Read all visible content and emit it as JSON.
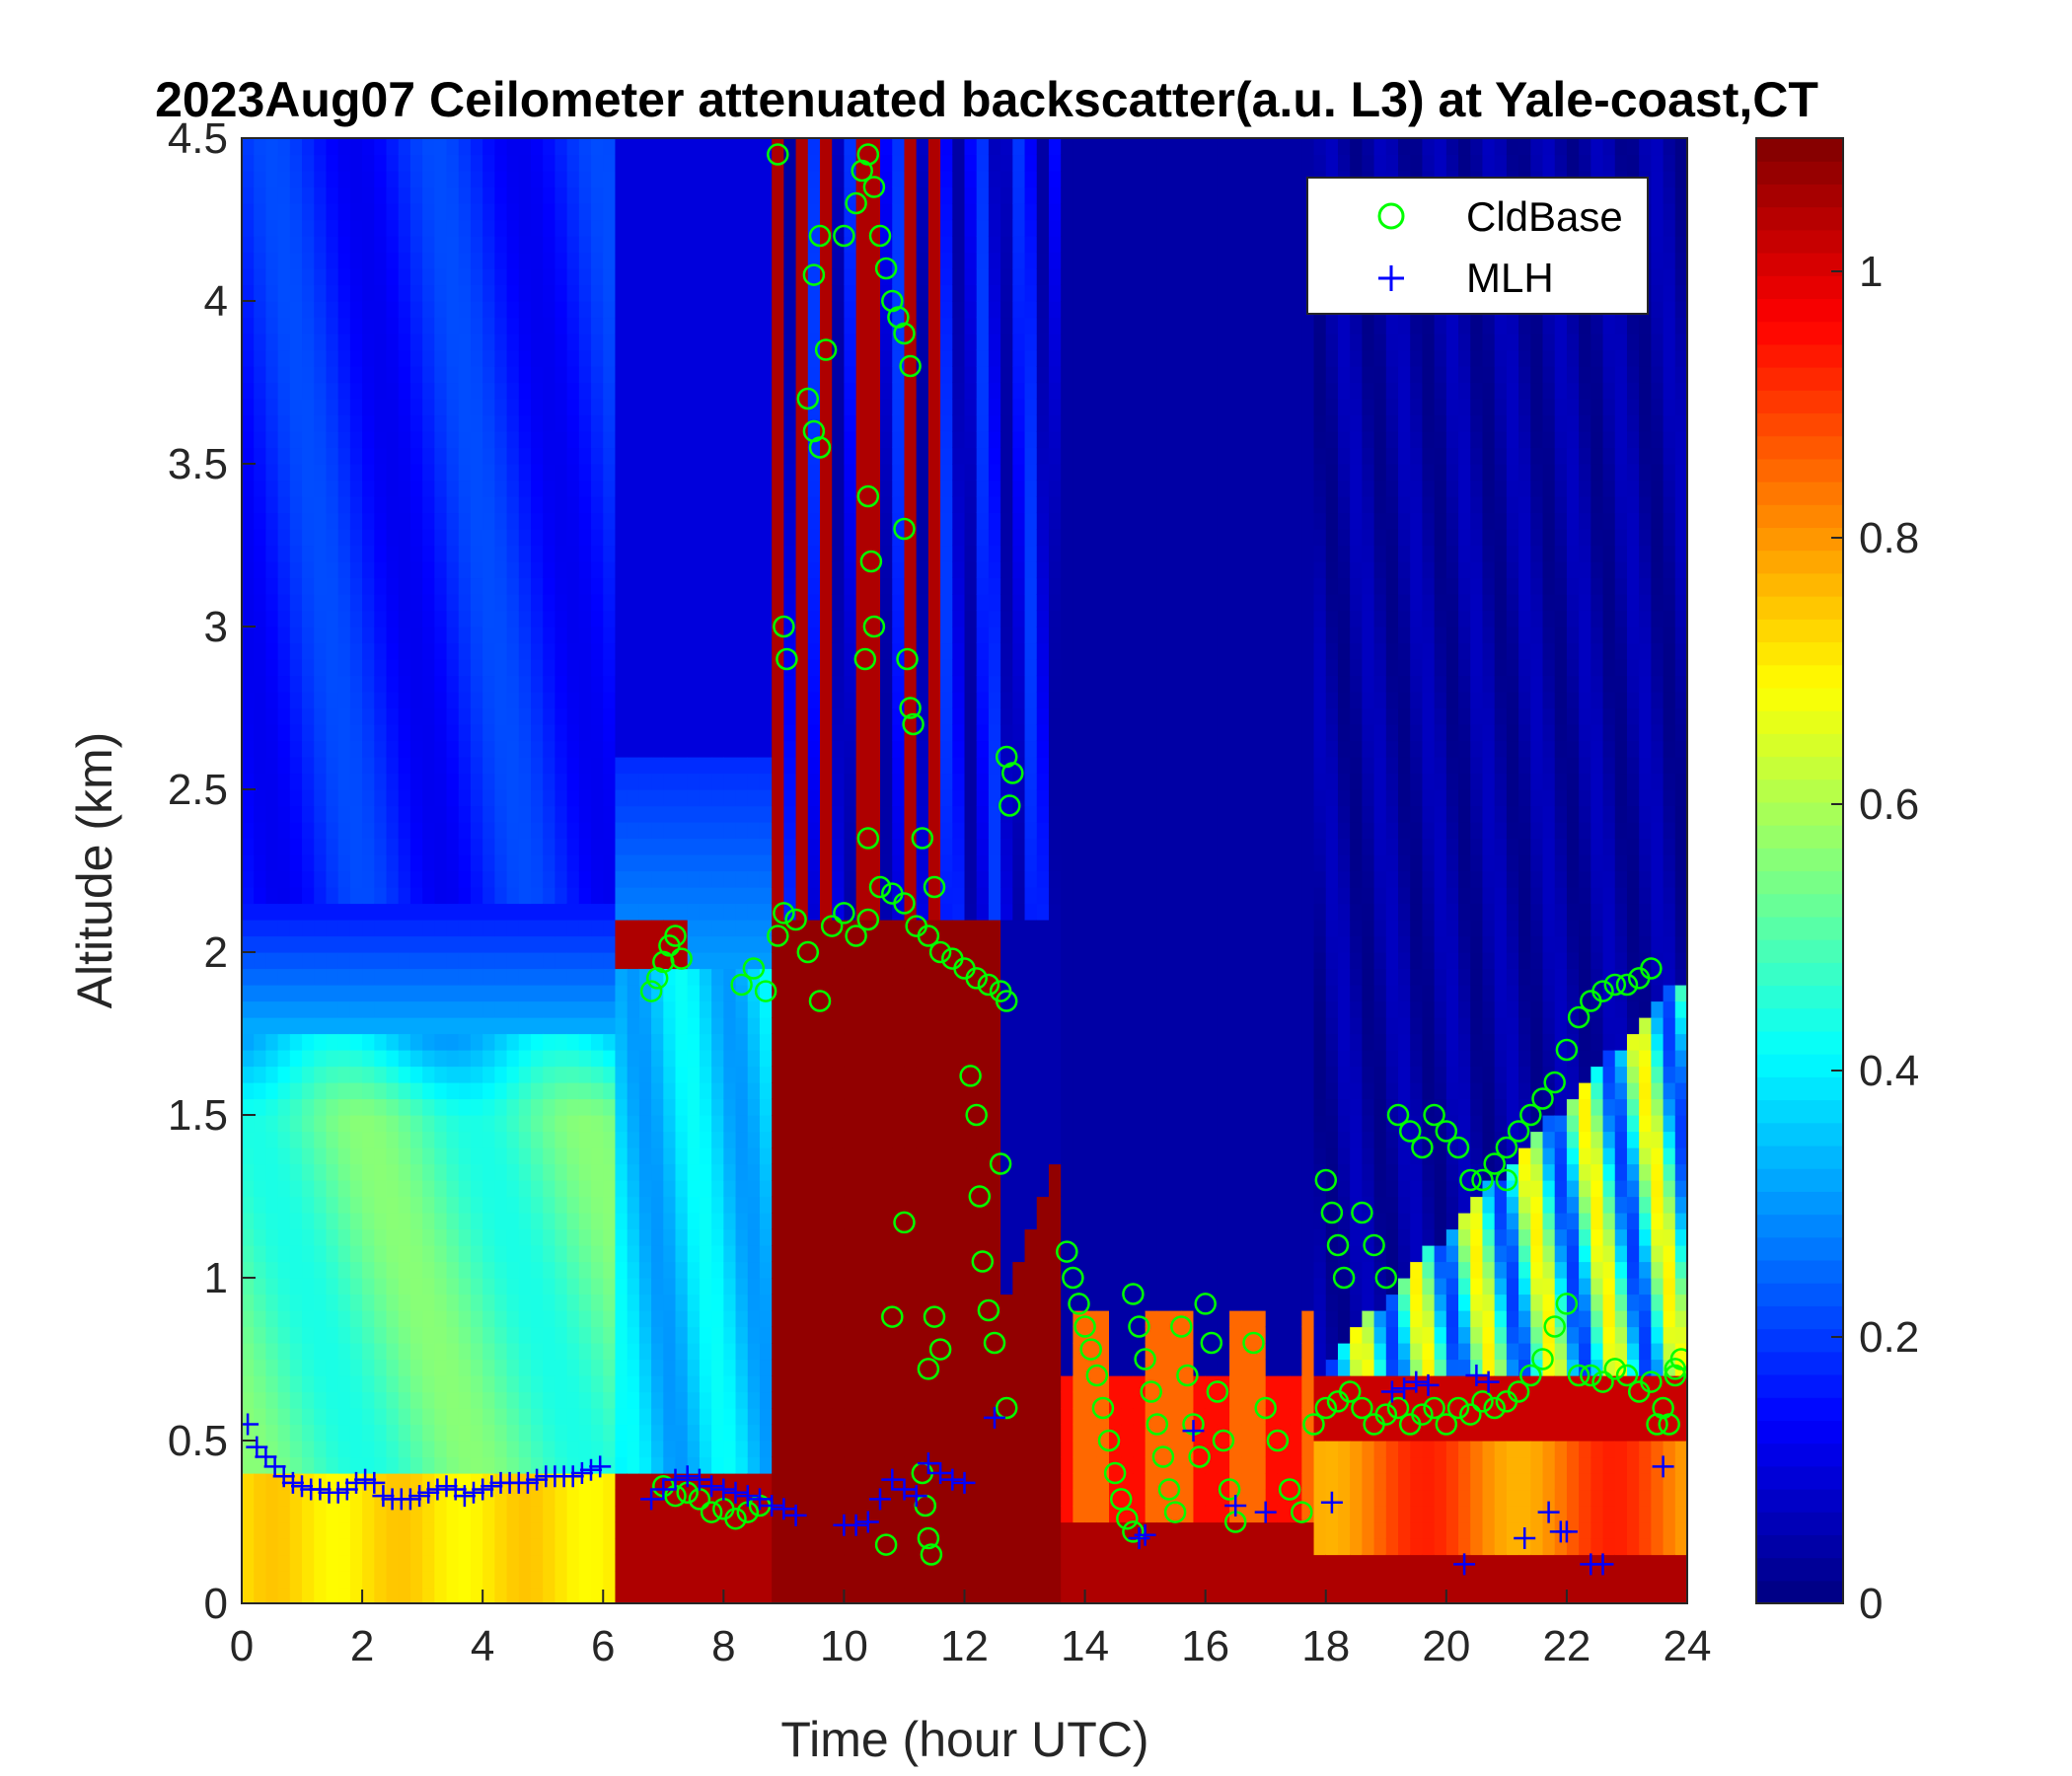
{
  "chart_data": {
    "type": "heatmap",
    "title": "2023Aug07 Ceilometer attenuated backscatter(a.u. L3) at Yale-coast,CT",
    "xlabel": "Time (hour UTC)",
    "ylabel": "Altitude (km)",
    "xlim": [
      0,
      24
    ],
    "ylim": [
      0,
      4.5
    ],
    "x_ticks": [
      "0",
      "2",
      "4",
      "6",
      "8",
      "10",
      "12",
      "14",
      "16",
      "18",
      "20",
      "22",
      "24"
    ],
    "y_ticks": [
      "0",
      "0.5",
      "1",
      "1.5",
      "2",
      "2.5",
      "3",
      "3.5",
      "4",
      "4.5"
    ],
    "colorbar": {
      "colormap": "jet",
      "range": [
        0,
        1.1
      ],
      "ticks": [
        "0",
        "0.2",
        "0.4",
        "0.6",
        "0.8",
        "1"
      ]
    },
    "legend": {
      "position": "top-right",
      "entries": [
        "CldBase",
        "MLH"
      ]
    },
    "series": [
      {
        "name": "CldBase",
        "marker": "circle",
        "color": "#00ff00",
        "points": [
          [
            6.8,
            1.88
          ],
          [
            6.9,
            1.92
          ],
          [
            7.0,
            1.97
          ],
          [
            7.1,
            2.02
          ],
          [
            7.2,
            2.05
          ],
          [
            7.3,
            1.98
          ],
          [
            7.0,
            0.36
          ],
          [
            7.2,
            0.33
          ],
          [
            7.4,
            0.34
          ],
          [
            7.6,
            0.32
          ],
          [
            7.8,
            0.28
          ],
          [
            8.0,
            0.29
          ],
          [
            8.2,
            0.26
          ],
          [
            8.4,
            0.28
          ],
          [
            8.6,
            0.3
          ],
          [
            8.3,
            1.9
          ],
          [
            8.5,
            1.95
          ],
          [
            8.7,
            1.88
          ],
          [
            8.9,
            2.05
          ],
          [
            9.0,
            2.12
          ],
          [
            9.2,
            2.1
          ],
          [
            9.4,
            2.0
          ],
          [
            9.6,
            1.85
          ],
          [
            9.8,
            2.08
          ],
          [
            10.0,
            2.12
          ],
          [
            10.2,
            2.05
          ],
          [
            10.4,
            2.1
          ],
          [
            10.6,
            2.2
          ],
          [
            10.8,
            2.18
          ],
          [
            11.0,
            2.15
          ],
          [
            11.2,
            2.08
          ],
          [
            11.4,
            2.05
          ],
          [
            11.6,
            2.0
          ],
          [
            11.8,
            1.98
          ],
          [
            12.0,
            1.95
          ],
          [
            12.2,
            1.92
          ],
          [
            12.4,
            1.9
          ],
          [
            12.6,
            1.88
          ],
          [
            12.7,
            1.85
          ],
          [
            8.9,
            4.45
          ],
          [
            9.0,
            3.0
          ],
          [
            9.05,
            2.9
          ],
          [
            9.4,
            3.7
          ],
          [
            9.5,
            3.6
          ],
          [
            9.6,
            3.55
          ],
          [
            9.5,
            4.08
          ],
          [
            9.6,
            4.2
          ],
          [
            9.7,
            3.85
          ],
          [
            10.0,
            4.2
          ],
          [
            10.2,
            4.3
          ],
          [
            10.3,
            4.4
          ],
          [
            10.4,
            4.45
          ],
          [
            10.5,
            4.35
          ],
          [
            10.6,
            4.2
          ],
          [
            10.7,
            4.1
          ],
          [
            10.8,
            4.0
          ],
          [
            10.9,
            3.95
          ],
          [
            11.0,
            3.9
          ],
          [
            11.1,
            3.8
          ],
          [
            10.4,
            3.4
          ],
          [
            10.45,
            3.2
          ],
          [
            10.5,
            3.0
          ],
          [
            10.35,
            2.9
          ],
          [
            10.4,
            2.35
          ],
          [
            11.0,
            3.3
          ],
          [
            11.05,
            2.9
          ],
          [
            11.1,
            2.75
          ],
          [
            11.15,
            2.7
          ],
          [
            11.3,
            2.35
          ],
          [
            11.5,
            2.2
          ],
          [
            11.0,
            1.17
          ],
          [
            10.8,
            0.88
          ],
          [
            11.5,
            0.88
          ],
          [
            11.6,
            0.78
          ],
          [
            11.4,
            0.72
          ],
          [
            12.1,
            1.62
          ],
          [
            12.2,
            1.5
          ],
          [
            12.25,
            1.25
          ],
          [
            12.3,
            1.05
          ],
          [
            12.4,
            0.9
          ],
          [
            12.5,
            0.8
          ],
          [
            12.6,
            1.35
          ],
          [
            12.7,
            0.6
          ],
          [
            12.7,
            2.6
          ],
          [
            12.75,
            2.45
          ],
          [
            12.8,
            2.55
          ],
          [
            11.3,
            0.4
          ],
          [
            11.35,
            0.3
          ],
          [
            11.4,
            0.2
          ],
          [
            11.45,
            0.15
          ],
          [
            10.7,
            0.18
          ],
          [
            13.7,
            1.08
          ],
          [
            13.8,
            1.0
          ],
          [
            13.9,
            0.92
          ],
          [
            14.0,
            0.85
          ],
          [
            14.1,
            0.78
          ],
          [
            14.2,
            0.7
          ],
          [
            14.3,
            0.6
          ],
          [
            14.4,
            0.5
          ],
          [
            14.5,
            0.4
          ],
          [
            14.6,
            0.32
          ],
          [
            14.7,
            0.26
          ],
          [
            14.8,
            0.22
          ],
          [
            14.8,
            0.95
          ],
          [
            14.9,
            0.85
          ],
          [
            15.0,
            0.75
          ],
          [
            15.1,
            0.65
          ],
          [
            15.2,
            0.55
          ],
          [
            15.3,
            0.45
          ],
          [
            15.4,
            0.35
          ],
          [
            15.5,
            0.28
          ],
          [
            15.6,
            0.85
          ],
          [
            15.7,
            0.7
          ],
          [
            15.8,
            0.55
          ],
          [
            15.9,
            0.45
          ],
          [
            16.0,
            0.92
          ],
          [
            16.1,
            0.8
          ],
          [
            16.2,
            0.65
          ],
          [
            16.3,
            0.5
          ],
          [
            16.4,
            0.35
          ],
          [
            16.5,
            0.25
          ],
          [
            16.8,
            0.8
          ],
          [
            17.0,
            0.6
          ],
          [
            17.2,
            0.5
          ],
          [
            17.4,
            0.35
          ],
          [
            17.6,
            0.28
          ],
          [
            17.8,
            0.55
          ],
          [
            18.0,
            0.6
          ],
          [
            18.2,
            0.62
          ],
          [
            18.4,
            0.65
          ],
          [
            18.6,
            0.6
          ],
          [
            18.8,
            0.55
          ],
          [
            19.0,
            0.58
          ],
          [
            19.2,
            0.6
          ],
          [
            19.4,
            0.55
          ],
          [
            19.6,
            0.58
          ],
          [
            19.8,
            0.6
          ],
          [
            20.0,
            0.55
          ],
          [
            20.2,
            0.6
          ],
          [
            20.4,
            0.58
          ],
          [
            20.6,
            0.62
          ],
          [
            20.8,
            0.6
          ],
          [
            21.0,
            0.62
          ],
          [
            21.2,
            0.65
          ],
          [
            21.4,
            0.7
          ],
          [
            21.6,
            0.75
          ],
          [
            21.8,
            0.85
          ],
          [
            22.0,
            0.92
          ],
          [
            22.2,
            0.7
          ],
          [
            22.4,
            0.7
          ],
          [
            22.6,
            0.68
          ],
          [
            22.8,
            0.72
          ],
          [
            23.0,
            0.7
          ],
          [
            23.2,
            0.65
          ],
          [
            23.4,
            0.68
          ],
          [
            23.6,
            0.6
          ],
          [
            23.8,
            0.72
          ],
          [
            23.9,
            0.75
          ],
          [
            18.0,
            1.3
          ],
          [
            18.1,
            1.2
          ],
          [
            18.2,
            1.1
          ],
          [
            18.3,
            1.0
          ],
          [
            18.6,
            1.2
          ],
          [
            18.8,
            1.1
          ],
          [
            19.0,
            1.0
          ],
          [
            19.2,
            1.5
          ],
          [
            19.4,
            1.45
          ],
          [
            19.6,
            1.4
          ],
          [
            19.8,
            1.5
          ],
          [
            20.0,
            1.45
          ],
          [
            20.2,
            1.4
          ],
          [
            20.4,
            1.3
          ],
          [
            20.6,
            1.3
          ],
          [
            20.8,
            1.35
          ],
          [
            21.0,
            1.3
          ],
          [
            21.0,
            1.4
          ],
          [
            21.2,
            1.45
          ],
          [
            21.4,
            1.5
          ],
          [
            21.6,
            1.55
          ],
          [
            21.8,
            1.6
          ],
          [
            22.0,
            1.7
          ],
          [
            22.2,
            1.8
          ],
          [
            22.4,
            1.85
          ],
          [
            22.6,
            1.88
          ],
          [
            22.8,
            1.9
          ],
          [
            23.0,
            1.9
          ],
          [
            23.2,
            1.92
          ],
          [
            23.4,
            1.95
          ],
          [
            23.5,
            0.55
          ],
          [
            23.8,
            0.7
          ],
          [
            23.7,
            0.55
          ]
        ]
      },
      {
        "name": "MLH",
        "marker": "plus",
        "color": "#0000ff",
        "points": [
          [
            0.1,
            0.55
          ],
          [
            0.25,
            0.48
          ],
          [
            0.4,
            0.45
          ],
          [
            0.55,
            0.42
          ],
          [
            0.7,
            0.39
          ],
          [
            0.85,
            0.37
          ],
          [
            1.0,
            0.36
          ],
          [
            1.15,
            0.35
          ],
          [
            1.3,
            0.35
          ],
          [
            1.45,
            0.34
          ],
          [
            1.6,
            0.34
          ],
          [
            1.75,
            0.35
          ],
          [
            1.9,
            0.37
          ],
          [
            2.05,
            0.38
          ],
          [
            2.2,
            0.37
          ],
          [
            2.35,
            0.33
          ],
          [
            2.5,
            0.32
          ],
          [
            2.65,
            0.32
          ],
          [
            2.8,
            0.32
          ],
          [
            2.95,
            0.33
          ],
          [
            3.1,
            0.34
          ],
          [
            3.25,
            0.35
          ],
          [
            3.4,
            0.36
          ],
          [
            3.55,
            0.35
          ],
          [
            3.7,
            0.33
          ],
          [
            3.85,
            0.34
          ],
          [
            4.0,
            0.35
          ],
          [
            4.15,
            0.36
          ],
          [
            4.3,
            0.37
          ],
          [
            4.45,
            0.37
          ],
          [
            4.6,
            0.37
          ],
          [
            4.75,
            0.37
          ],
          [
            4.9,
            0.38
          ],
          [
            5.05,
            0.39
          ],
          [
            5.2,
            0.39
          ],
          [
            5.35,
            0.39
          ],
          [
            5.5,
            0.39
          ],
          [
            5.65,
            0.4
          ],
          [
            5.8,
            0.41
          ],
          [
            5.95,
            0.42
          ],
          [
            6.8,
            0.32
          ],
          [
            7.0,
            0.35
          ],
          [
            7.2,
            0.38
          ],
          [
            7.4,
            0.39
          ],
          [
            7.6,
            0.38
          ],
          [
            7.8,
            0.36
          ],
          [
            8.0,
            0.35
          ],
          [
            8.2,
            0.34
          ],
          [
            8.4,
            0.33
          ],
          [
            8.6,
            0.32
          ],
          [
            8.8,
            0.3
          ],
          [
            9.0,
            0.29
          ],
          [
            9.2,
            0.27
          ],
          [
            10.0,
            0.24
          ],
          [
            10.2,
            0.24
          ],
          [
            10.4,
            0.25
          ],
          [
            10.6,
            0.32
          ],
          [
            10.8,
            0.38
          ],
          [
            11.0,
            0.35
          ],
          [
            11.2,
            0.33
          ],
          [
            11.4,
            0.43
          ],
          [
            11.6,
            0.4
          ],
          [
            11.8,
            0.38
          ],
          [
            12.0,
            0.37
          ],
          [
            12.5,
            0.57
          ],
          [
            14.9,
            0.2
          ],
          [
            15.0,
            0.21
          ],
          [
            15.8,
            0.53
          ],
          [
            16.5,
            0.3
          ],
          [
            17.0,
            0.28
          ],
          [
            18.1,
            0.31
          ],
          [
            19.1,
            0.65
          ],
          [
            19.3,
            0.66
          ],
          [
            19.5,
            0.68
          ],
          [
            19.7,
            0.67
          ],
          [
            20.3,
            0.12
          ],
          [
            20.5,
            0.7
          ],
          [
            20.7,
            0.68
          ],
          [
            21.3,
            0.2
          ],
          [
            21.7,
            0.28
          ],
          [
            21.9,
            0.22
          ],
          [
            22.0,
            0.22
          ],
          [
            22.4,
            0.12
          ],
          [
            22.6,
            0.12
          ],
          [
            23.6,
            0.42
          ]
        ]
      }
    ]
  }
}
